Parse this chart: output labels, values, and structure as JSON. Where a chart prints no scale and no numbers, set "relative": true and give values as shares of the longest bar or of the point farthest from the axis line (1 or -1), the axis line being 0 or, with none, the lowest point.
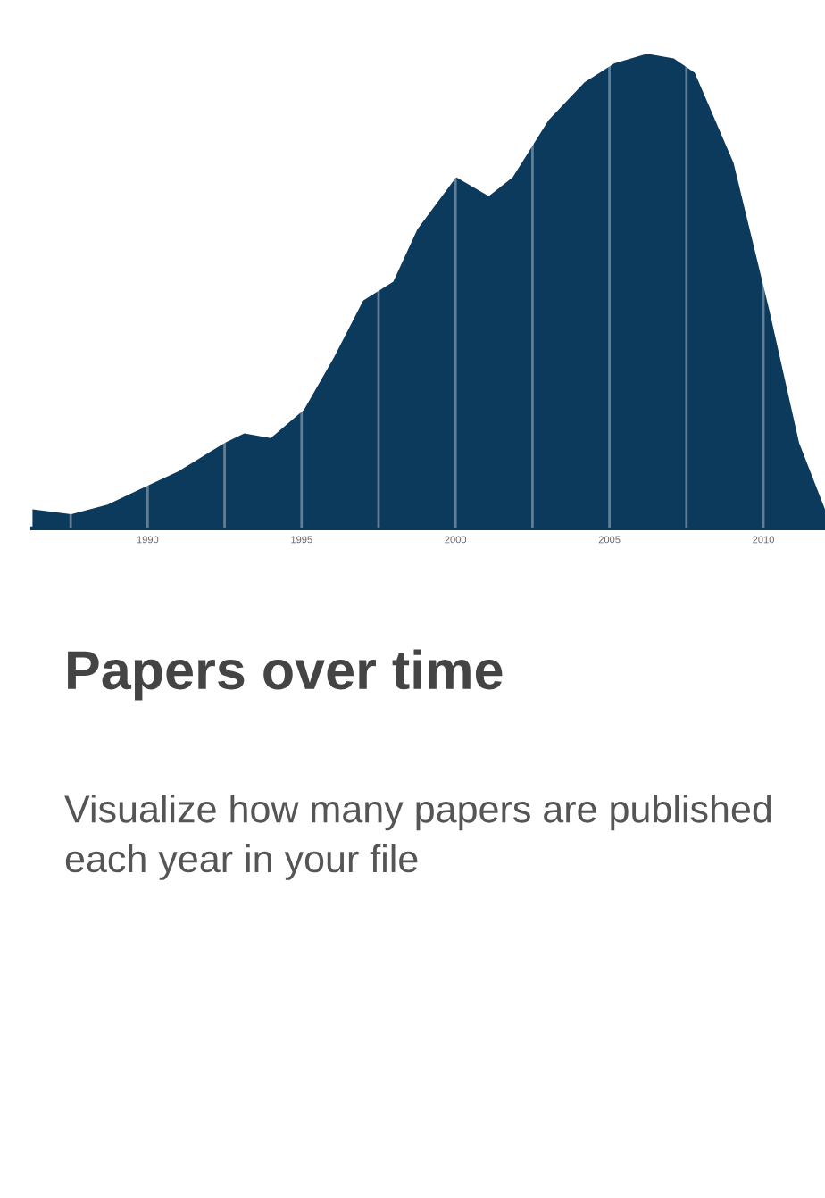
{
  "chart_data": {
    "type": "area",
    "title": "Papers over time",
    "subtitle": "Visualize how many papers are published each year in your file",
    "relative": true,
    "x": [
      1986.26,
      1987.52,
      1988.7,
      1990.0,
      1991.0,
      1992.5,
      1993.14,
      1994.0,
      1995.08,
      1996.05,
      1997.0,
      1997.98,
      1998.76,
      2000.02,
      2001.08,
      2001.86,
      2003.02,
      2004.19,
      2005.16,
      2006.22,
      2007.09,
      2007.77,
      2009.03,
      2010.19,
      2011.16,
      2012.0
    ],
    "series": [
      {
        "color": "#0c3a5c",
        "values": [
          0.04,
          0.03,
          0.05,
          0.09,
          0.12,
          0.18,
          0.2,
          0.19,
          0.25,
          0.36,
          0.48,
          0.52,
          0.63,
          0.74,
          0.7,
          0.74,
          0.86,
          0.94,
          0.98,
          1.0,
          0.99,
          0.96,
          0.77,
          0.46,
          0.18,
          0.04
        ]
      }
    ],
    "xlim": [
      1986.25,
      2012.0
    ],
    "xticks": [
      {
        "value": 1987.5,
        "label": null
      },
      1990,
      {
        "value": 1992.5,
        "label": null
      },
      1995,
      {
        "value": 1997.5,
        "label": null
      },
      2000,
      {
        "value": 2002.5,
        "label": null
      },
      2005,
      {
        "value": 2007.5,
        "label": null
      },
      2010
    ],
    "grid": "x"
  }
}
